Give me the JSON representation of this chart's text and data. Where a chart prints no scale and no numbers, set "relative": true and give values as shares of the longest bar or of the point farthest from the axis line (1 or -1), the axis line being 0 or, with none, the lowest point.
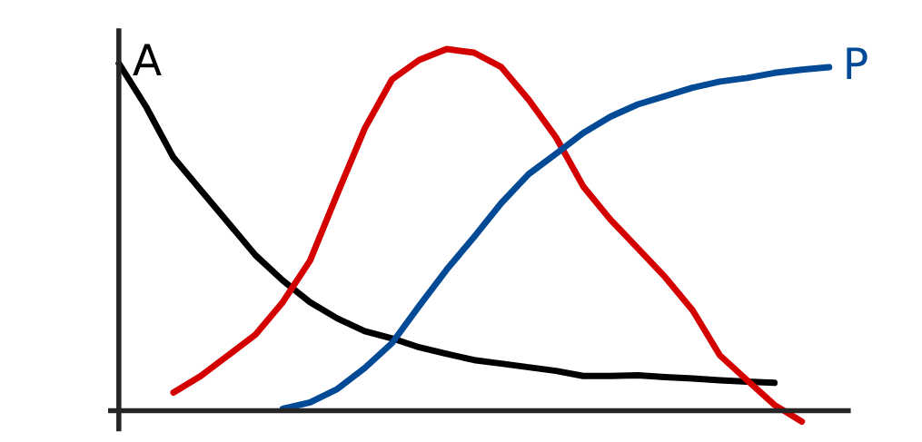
{
  "chart_data": {
    "type": "line",
    "relative": true,
    "legend": false,
    "categories": [
      null,
      null,
      null,
      null,
      null,
      null,
      null,
      null,
      null,
      null,
      null,
      null,
      null,
      null,
      null,
      null,
      null,
      null,
      null,
      null,
      null,
      null,
      null,
      null,
      null,
      null,
      null
    ],
    "series": [
      {
        "name": "A",
        "color": "#000000",
        "values": [
          0.96,
          0.84,
          0.7,
          0.61,
          0.52,
          0.43,
          0.36,
          0.3,
          0.255,
          0.22,
          0.2,
          0.175,
          0.157,
          0.14,
          0.13,
          0.12,
          0.11,
          0.096,
          0.096,
          0.098,
          0.093,
          0.089,
          0.084,
          0.08,
          0.077,
          null,
          null
        ]
      },
      {
        "color": "#d40000",
        "values": [
          null,
          null,
          0.05,
          0.096,
          0.153,
          0.21,
          0.3,
          0.415,
          0.6,
          0.78,
          0.916,
          0.97,
          1.0,
          0.99,
          0.95,
          0.86,
          0.756,
          0.62,
          0.528,
          0.449,
          0.369,
          0.278,
          0.153,
          0.084,
          0.016,
          -0.03,
          null
        ]
      },
      {
        "name": "P",
        "color": "#034a96",
        "values": [
          null,
          null,
          null,
          null,
          null,
          null,
          0.005,
          0.023,
          0.06,
          0.118,
          0.187,
          0.29,
          0.39,
          0.48,
          0.574,
          0.654,
          0.71,
          0.768,
          0.813,
          0.847,
          0.87,
          0.893,
          0.91,
          0.92,
          0.934,
          0.943,
          0.95
        ]
      }
    ]
  }
}
